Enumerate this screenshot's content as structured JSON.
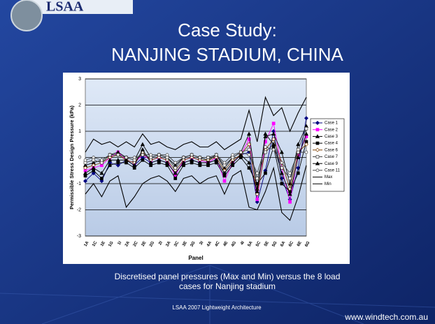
{
  "logo": "LSAA",
  "slide_title": [
    "Case Study:",
    "NANJING STADIUM, CHINA"
  ],
  "caption": [
    "Discretised panel pressures (Max and Min) versus the 8 load",
    "cases for Nanjing stadium"
  ],
  "footer": "LSAA 2007 Lightweight Architecture",
  "url": "www.windtech.com.au",
  "chart_data": {
    "type": "line",
    "x_label": "Panel",
    "y_label": "Permissible Stress Design Pressure (kPa)",
    "categories": [
      "1A",
      "1C",
      "1E",
      "1G",
      "1I",
      "2A",
      "2C",
      "2E",
      "2G",
      "2I",
      "3A",
      "3C",
      "3E",
      "3G",
      "3I",
      "4A",
      "4C",
      "4E",
      "4G",
      "4I",
      "5A",
      "5C",
      "5E",
      "5G",
      "6A",
      "6C",
      "6E",
      "6G"
    ],
    "ylim": [
      -3,
      3
    ],
    "yticks": [
      -3,
      -2,
      -1,
      0,
      1,
      2,
      3
    ],
    "grid": true,
    "legend": "right",
    "series": [
      {
        "name": "Case 1",
        "color": "#000080",
        "marker": "diamond",
        "values": [
          -0.9,
          -0.6,
          -0.9,
          -0.2,
          -0.3,
          -0.1,
          -0.3,
          0.0,
          -0.2,
          -0.1,
          -0.2,
          -0.6,
          -0.2,
          -0.1,
          -0.2,
          -0.2,
          -0.1,
          -0.6,
          -0.2,
          0.1,
          0.2,
          -1.7,
          -0.5,
          1.0,
          -0.8,
          -1.6,
          -0.4,
          1.5
        ]
      },
      {
        "name": "Case 2",
        "color": "#ff00ff",
        "marker": "square",
        "values": [
          -0.5,
          -0.4,
          -0.3,
          0.0,
          0.2,
          -0.1,
          -0.2,
          0.1,
          -0.1,
          0.0,
          -0.1,
          -0.7,
          -0.1,
          0.0,
          -0.1,
          -0.2,
          0.0,
          -0.9,
          -0.2,
          0.1,
          0.7,
          -1.6,
          0.6,
          1.3,
          -0.4,
          -1.7,
          0.1,
          0.8
        ]
      },
      {
        "name": "Case 3",
        "color": "#000000",
        "marker": "triangle",
        "values": [
          -0.3,
          -0.2,
          -0.1,
          0.1,
          0.2,
          0.0,
          -0.1,
          0.5,
          0.0,
          0.1,
          0.0,
          -0.3,
          0.0,
          0.1,
          0.0,
          -0.1,
          0.1,
          -0.4,
          0.0,
          0.2,
          0.9,
          -1.2,
          0.8,
          0.9,
          0.2,
          -1.0,
          0.5,
          1.2
        ]
      },
      {
        "name": "Case 4",
        "color": "#000000",
        "marker": "square",
        "values": [
          -0.7,
          -0.5,
          -0.8,
          -0.3,
          -0.2,
          -0.2,
          -0.4,
          -0.1,
          -0.3,
          -0.2,
          -0.3,
          -0.8,
          -0.3,
          -0.2,
          -0.3,
          -0.3,
          -0.2,
          -0.7,
          -0.3,
          0.0,
          -0.4,
          -1.0,
          -0.6,
          0.4,
          -1.0,
          -1.3,
          -0.6,
          0.6
        ]
      },
      {
        "name": "Case 6",
        "color": "#804000",
        "marker": "diamond-open",
        "values": [
          -0.4,
          -0.3,
          -0.2,
          0.0,
          0.1,
          -0.1,
          -0.2,
          0.2,
          -0.1,
          0.0,
          -0.1,
          -0.5,
          -0.1,
          0.0,
          -0.1,
          -0.1,
          0.0,
          -0.5,
          -0.1,
          0.1,
          0.5,
          -1.4,
          0.3,
          0.7,
          -0.2,
          -1.2,
          0.2,
          0.5
        ]
      },
      {
        "name": "Case 7",
        "color": "#404040",
        "marker": "square-open",
        "values": [
          -0.2,
          -0.1,
          -0.2,
          0.1,
          0.1,
          0.0,
          -0.1,
          0.1,
          0.0,
          0.1,
          0.0,
          -0.4,
          0.0,
          0.1,
          0.0,
          0.0,
          0.1,
          -0.3,
          0.0,
          0.2,
          0.3,
          -0.8,
          0.2,
          0.5,
          -0.4,
          -0.8,
          0.3,
          1.1
        ]
      },
      {
        "name": "Case 9",
        "color": "#000000",
        "marker": "triangle",
        "values": [
          -0.6,
          -0.4,
          -0.6,
          -0.1,
          -0.1,
          -0.1,
          -0.3,
          0.3,
          -0.2,
          -0.1,
          -0.2,
          -0.6,
          -0.2,
          -0.1,
          -0.2,
          -0.2,
          -0.1,
          -0.6,
          -0.2,
          0.1,
          -0.2,
          -1.3,
          0.9,
          0.5,
          -0.6,
          -1.4,
          0.0,
          0.9
        ]
      },
      {
        "name": "Case 11",
        "color": "#404040",
        "marker": "circle-open",
        "values": [
          -0.1,
          0.0,
          -0.1,
          0.1,
          0.1,
          0.0,
          0.0,
          0.1,
          0.1,
          0.1,
          0.1,
          -0.2,
          0.0,
          0.1,
          0.0,
          0.0,
          0.1,
          -0.2,
          0.1,
          0.2,
          0.1,
          -0.6,
          0.4,
          0.3,
          -0.2,
          -0.6,
          0.2,
          0.2
        ]
      },
      {
        "name": "Max",
        "color": "#000000",
        "marker": "none",
        "values": [
          0.2,
          0.7,
          0.5,
          0.6,
          0.4,
          0.6,
          0.4,
          0.9,
          0.5,
          0.6,
          0.4,
          0.3,
          0.5,
          0.6,
          0.4,
          0.4,
          0.6,
          0.3,
          0.5,
          0.7,
          1.8,
          0.6,
          2.3,
          1.6,
          1.9,
          1.0,
          1.7,
          2.3
        ]
      },
      {
        "name": "Min",
        "color": "#000000",
        "marker": "none",
        "values": [
          -1.4,
          -1.0,
          -1.5,
          -0.9,
          -0.7,
          -1.9,
          -1.5,
          -1.0,
          -0.8,
          -0.7,
          -0.9,
          -1.3,
          -0.8,
          -0.7,
          -1.0,
          -0.8,
          -0.7,
          -1.4,
          -0.7,
          -0.5,
          -1.9,
          -2.0,
          -1.3,
          -0.4,
          -2.1,
          -2.4,
          -1.5,
          -0.3
        ]
      }
    ]
  }
}
